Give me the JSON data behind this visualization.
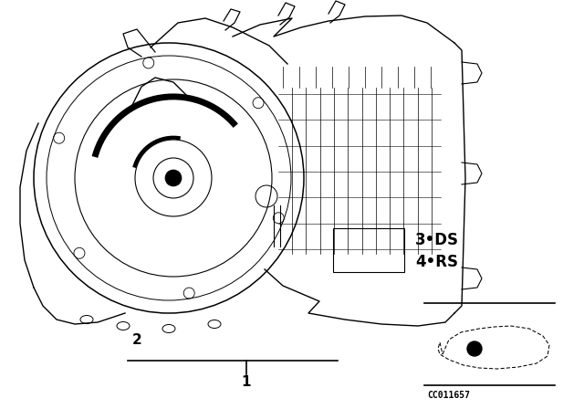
{
  "bg_color": "#ffffff",
  "text_color": "#000000",
  "label_1": "1",
  "label_2": "2",
  "label_3DS": "3•DS",
  "label_4RS": "4•RS",
  "diagram_code": "CC011657"
}
